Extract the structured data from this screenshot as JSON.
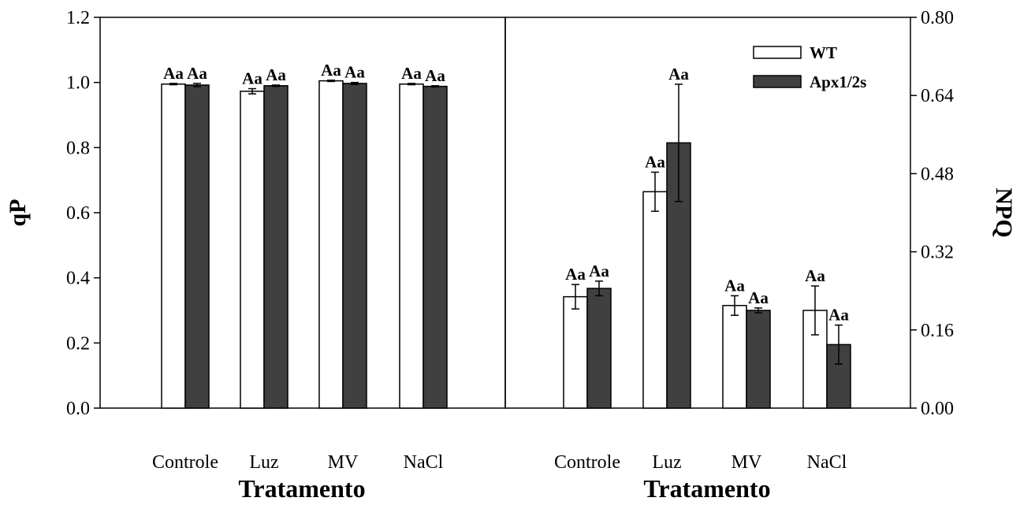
{
  "chart_data": [
    {
      "type": "bar",
      "panel": "left",
      "categories": [
        "Controle",
        "Luz",
        "MV",
        "NaCl"
      ],
      "xlabel": "Tratamento",
      "ylabel": "qP",
      "ylim": [
        0,
        1.2
      ],
      "yticks": [
        "0.0",
        "0.2",
        "0.4",
        "0.6",
        "0.8",
        "1.0",
        "1.2"
      ],
      "series": [
        {
          "name": "WT",
          "color": "#ffffff",
          "values": [
            0.995,
            0.973,
            1.005,
            0.995
          ],
          "errors": [
            0.002,
            0.008,
            0.002,
            0.002
          ],
          "annotations": [
            "Aa",
            "Aa",
            "Aa",
            "Aa"
          ]
        },
        {
          "name": "Apx1/2s",
          "color": "#404040",
          "values": [
            0.992,
            0.99,
            0.997,
            0.988
          ],
          "errors": [
            0.005,
            0.002,
            0.003,
            0.002
          ],
          "annotations": [
            "Aa",
            "Aa",
            "Aa",
            "Aa"
          ]
        }
      ]
    },
    {
      "type": "bar",
      "panel": "right",
      "categories": [
        "Controle",
        "Luz",
        "MV",
        "NaCl"
      ],
      "xlabel": "Tratamento",
      "ylabel": "NPQ",
      "ylim": [
        0,
        0.8
      ],
      "yticks": [
        "0.00",
        "0.16",
        "0.32",
        "0.48",
        "0.64",
        "0.80"
      ],
      "legend": {
        "placement": "top-right",
        "entries": [
          "WT",
          "Apx1/2s"
        ]
      },
      "series": [
        {
          "name": "WT",
          "color": "#ffffff",
          "values": [
            0.228,
            0.443,
            0.21,
            0.2
          ],
          "errors": [
            0.025,
            0.04,
            0.02,
            0.05
          ],
          "annotations": [
            "Aa",
            "Aa",
            "Aa",
            "Aa"
          ]
        },
        {
          "name": "Apx1/2s",
          "color": "#404040",
          "values": [
            0.245,
            0.543,
            0.2,
            0.13
          ],
          "errors": [
            0.015,
            0.12,
            0.005,
            0.04
          ],
          "annotations": [
            "Aa",
            "Aa",
            "Aa",
            "Aa"
          ]
        }
      ]
    }
  ]
}
